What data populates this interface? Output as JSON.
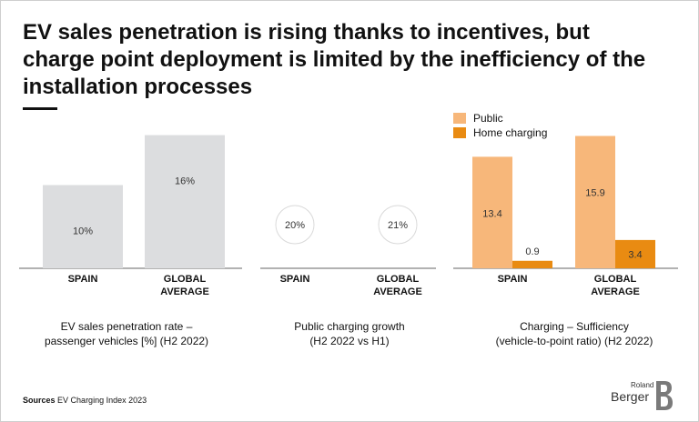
{
  "title": "EV sales penetration is rising thanks to incentives, but charge point deployment is limited by the inefficiency of the installation processes",
  "sources": {
    "label": "Sources",
    "text": "EV Charging Index 2023"
  },
  "logo": {
    "line1": "Roland",
    "line2": "Berger"
  },
  "colors": {
    "grey": "#dcdddf",
    "public": "#f7b77a",
    "home": "#e98b12",
    "axis": "#666666",
    "circle": "#d9d9d9"
  },
  "chart_data": [
    {
      "type": "bar",
      "title": "EV sales penetration rate – passenger vehicles [%] (H2 2022)",
      "caption_lines": [
        "EV sales penetration rate –",
        "passenger vehicles [%] (H2 2022)"
      ],
      "categories": [
        [
          "SPAIN"
        ],
        [
          "GLOBAL",
          "AVERAGE"
        ]
      ],
      "values": [
        10,
        16
      ],
      "labels": [
        "10%",
        "16%"
      ],
      "unit": "%",
      "ylim": [
        0,
        16.5
      ]
    },
    {
      "type": "table",
      "title": "Public charging growth (H2 2022 vs H1)",
      "caption_lines": [
        "Public charging growth",
        "(H2 2022 vs H1)"
      ],
      "categories": [
        [
          "SPAIN"
        ],
        [
          "GLOBAL",
          "AVERAGE"
        ]
      ],
      "values": [
        20,
        21
      ],
      "labels": [
        "20%",
        "21%"
      ],
      "unit": "%"
    },
    {
      "type": "bar",
      "title": "Charging – Sufficiency (vehicle-to-point ratio) (H2 2022)",
      "caption_lines": [
        "Charging – Sufficiency",
        "(vehicle-to-point ratio) (H2 2022)"
      ],
      "categories": [
        [
          "SPAIN"
        ],
        [
          "GLOBAL",
          "AVERAGE"
        ]
      ],
      "series": [
        {
          "name": "Public",
          "values": [
            13.4,
            15.9
          ],
          "labels": [
            "13.4",
            "15.9"
          ]
        },
        {
          "name": "Home charging",
          "values": [
            0.9,
            3.4
          ],
          "labels": [
            "0.9",
            "3.4"
          ]
        }
      ],
      "legend": "top-left",
      "ylim": [
        0,
        16.5
      ]
    }
  ]
}
